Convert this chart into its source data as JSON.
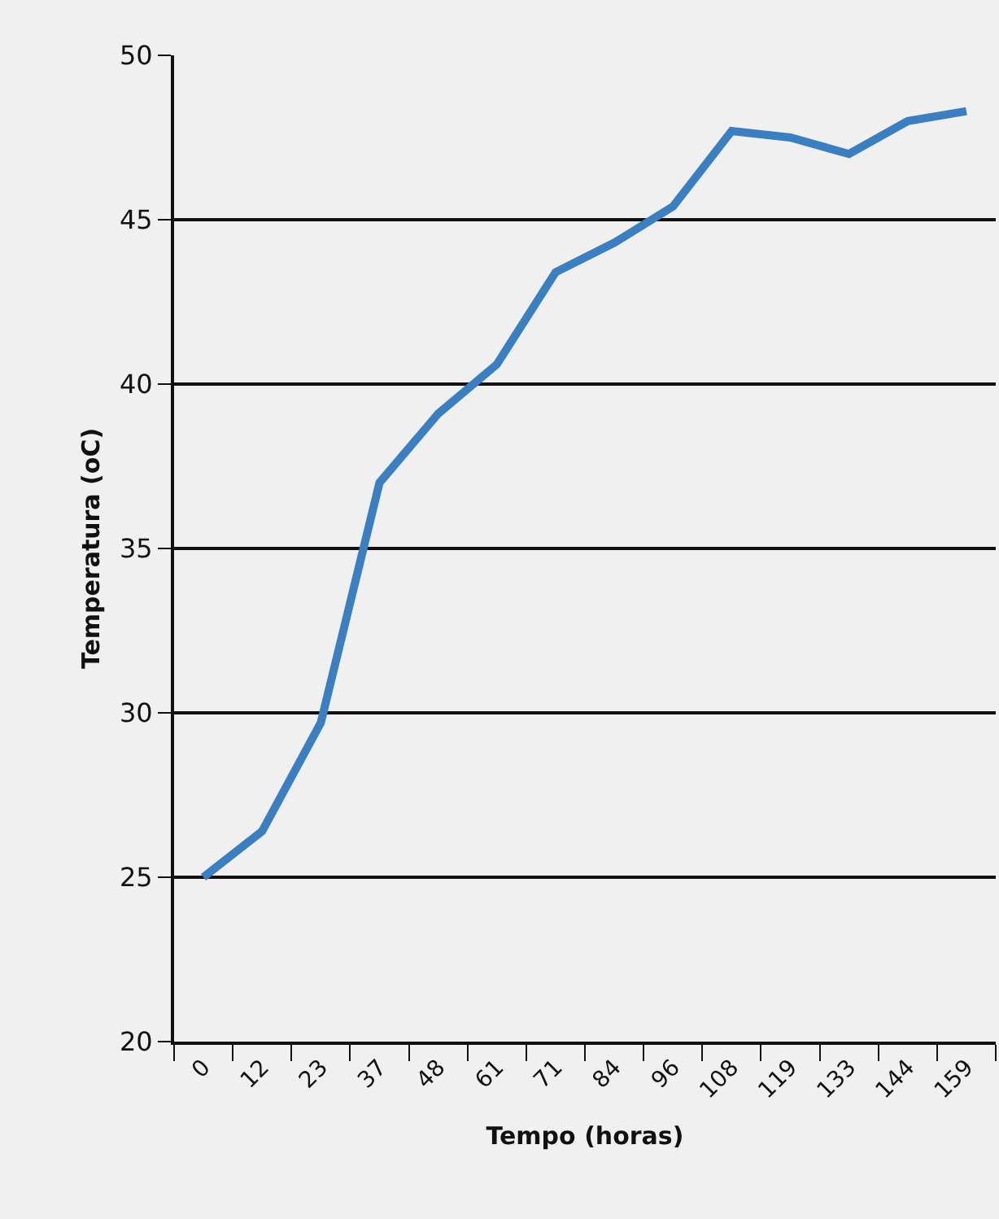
{
  "chart_data": {
    "type": "line",
    "xlabel": "Tempo (horas)",
    "ylabel": "Temperatura (oC)",
    "categories": [
      "0",
      "12",
      "23",
      "37",
      "48",
      "61",
      "71",
      "84",
      "96",
      "108",
      "119",
      "133",
      "144",
      "159"
    ],
    "series": [
      {
        "color": "#3a7fc1",
        "values": [
          25.0,
          26.4,
          29.7,
          37.0,
          39.1,
          40.6,
          43.4,
          44.3,
          45.4,
          47.7,
          47.5,
          47.0,
          48.0,
          48.3
        ]
      }
    ],
    "ylim": [
      20,
      50
    ],
    "yticks": [
      20,
      25,
      30,
      35,
      40,
      45,
      50
    ],
    "grid": "y",
    "marker": "none",
    "line_style": "solid"
  }
}
